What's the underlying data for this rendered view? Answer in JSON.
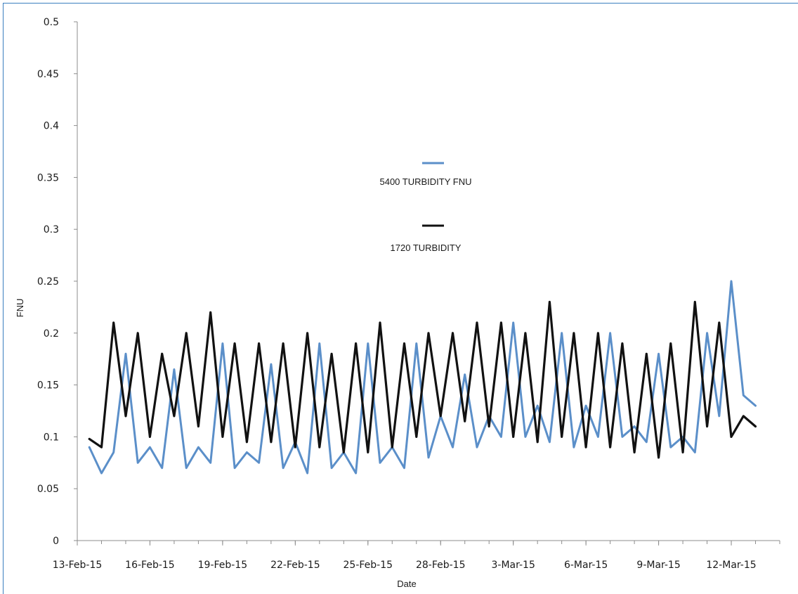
{
  "chart_data": {
    "type": "line",
    "title": "",
    "xlabel": "Date",
    "ylabel": "FNU",
    "ylim": [
      0,
      0.5
    ],
    "yticks": [
      0,
      0.05,
      0.1,
      0.15,
      0.2,
      0.25,
      0.3,
      0.35,
      0.4,
      0.45,
      0.5
    ],
    "ytick_labels": [
      "0",
      "0.05",
      "0.1",
      "0.15",
      "0.2",
      "0.25",
      "0.3",
      "0.35",
      "0.4",
      "0.45",
      "0.5"
    ],
    "xlim": [
      "2015-02-13",
      "2015-03-14"
    ],
    "xtick_labels": [
      "13-Feb-15",
      "16-Feb-15",
      "19-Feb-15",
      "22-Feb-15",
      "25-Feb-15",
      "28-Feb-15",
      "3-Mar-15",
      "6-Mar-15",
      "9-Mar-15",
      "12-Mar-15"
    ],
    "grid": false,
    "legend_position": "center",
    "colors": {
      "series1": "#5b8fc9",
      "series2": "#111111"
    },
    "series": [
      {
        "name": "5400 TURBIDITY FNU",
        "x": [
          "2015-02-13 12:00",
          "2015-02-14 00:00",
          "2015-02-14 12:00",
          "2015-02-15 00:00",
          "2015-02-15 12:00",
          "2015-02-16 00:00",
          "2015-02-16 12:00",
          "2015-02-17 00:00",
          "2015-02-17 12:00",
          "2015-02-18 00:00",
          "2015-02-18 12:00",
          "2015-02-19 00:00",
          "2015-02-19 12:00",
          "2015-02-20 00:00",
          "2015-02-20 12:00",
          "2015-02-21 00:00",
          "2015-02-21 12:00",
          "2015-02-22 00:00",
          "2015-02-22 12:00",
          "2015-02-23 00:00",
          "2015-02-23 12:00",
          "2015-02-24 00:00",
          "2015-02-24 12:00",
          "2015-02-25 00:00",
          "2015-02-25 12:00",
          "2015-02-26 00:00",
          "2015-02-26 12:00",
          "2015-02-27 00:00",
          "2015-02-27 12:00",
          "2015-02-28 00:00",
          "2015-02-28 12:00",
          "2015-03-01 00:00",
          "2015-03-01 12:00",
          "2015-03-02 00:00",
          "2015-03-02 12:00",
          "2015-03-03 00:00",
          "2015-03-03 12:00",
          "2015-03-04 00:00",
          "2015-03-04 12:00",
          "2015-03-05 00:00",
          "2015-03-05 12:00",
          "2015-03-06 00:00",
          "2015-03-06 12:00",
          "2015-03-07 00:00",
          "2015-03-07 12:00",
          "2015-03-08 00:00",
          "2015-03-08 12:00",
          "2015-03-09 00:00",
          "2015-03-09 12:00",
          "2015-03-10 00:00",
          "2015-03-10 12:00",
          "2015-03-11 00:00",
          "2015-03-11 12:00",
          "2015-03-12 00:00",
          "2015-03-12 12:00",
          "2015-03-13 00:00"
        ],
        "values": [
          0.09,
          0.065,
          0.085,
          0.18,
          0.075,
          0.09,
          0.07,
          0.165,
          0.07,
          0.09,
          0.075,
          0.19,
          0.07,
          0.085,
          0.075,
          0.17,
          0.07,
          0.095,
          0.065,
          0.19,
          0.07,
          0.085,
          0.065,
          0.19,
          0.075,
          0.09,
          0.07,
          0.19,
          0.08,
          0.12,
          0.09,
          0.16,
          0.09,
          0.12,
          0.1,
          0.21,
          0.1,
          0.13,
          0.095,
          0.2,
          0.09,
          0.13,
          0.1,
          0.2,
          0.1,
          0.11,
          0.095,
          0.18,
          0.09,
          0.1,
          0.085,
          0.2,
          0.12,
          0.25,
          0.14,
          0.13
        ]
      },
      {
        "name": "1720 TURBIDITY",
        "x": [
          "2015-02-13 12:00",
          "2015-02-14 00:00",
          "2015-02-14 12:00",
          "2015-02-15 00:00",
          "2015-02-15 12:00",
          "2015-02-16 00:00",
          "2015-02-16 12:00",
          "2015-02-17 00:00",
          "2015-02-17 12:00",
          "2015-02-18 00:00",
          "2015-02-18 12:00",
          "2015-02-19 00:00",
          "2015-02-19 12:00",
          "2015-02-20 00:00",
          "2015-02-20 12:00",
          "2015-02-21 00:00",
          "2015-02-21 12:00",
          "2015-02-22 00:00",
          "2015-02-22 12:00",
          "2015-02-23 00:00",
          "2015-02-23 12:00",
          "2015-02-24 00:00",
          "2015-02-24 12:00",
          "2015-02-25 00:00",
          "2015-02-25 12:00",
          "2015-02-26 00:00",
          "2015-02-26 12:00",
          "2015-02-27 00:00",
          "2015-02-27 12:00",
          "2015-02-28 00:00",
          "2015-02-28 12:00",
          "2015-03-01 00:00",
          "2015-03-01 12:00",
          "2015-03-02 00:00",
          "2015-03-02 12:00",
          "2015-03-03 00:00",
          "2015-03-03 12:00",
          "2015-03-04 00:00",
          "2015-03-04 12:00",
          "2015-03-05 00:00",
          "2015-03-05 12:00",
          "2015-03-06 00:00",
          "2015-03-06 12:00",
          "2015-03-07 00:00",
          "2015-03-07 12:00",
          "2015-03-08 00:00",
          "2015-03-08 12:00",
          "2015-03-09 00:00",
          "2015-03-09 12:00",
          "2015-03-10 00:00",
          "2015-03-10 12:00",
          "2015-03-11 00:00",
          "2015-03-11 12:00",
          "2015-03-12 00:00",
          "2015-03-12 12:00",
          "2015-03-13 00:00"
        ],
        "values": [
          0.098,
          0.09,
          0.21,
          0.12,
          0.2,
          0.1,
          0.18,
          0.12,
          0.2,
          0.11,
          0.22,
          0.1,
          0.19,
          0.095,
          0.19,
          0.095,
          0.19,
          0.09,
          0.2,
          0.09,
          0.18,
          0.085,
          0.19,
          0.085,
          0.21,
          0.09,
          0.19,
          0.1,
          0.2,
          0.12,
          0.2,
          0.115,
          0.21,
          0.11,
          0.21,
          0.1,
          0.2,
          0.095,
          0.23,
          0.1,
          0.2,
          0.09,
          0.2,
          0.09,
          0.19,
          0.085,
          0.18,
          0.08,
          0.19,
          0.085,
          0.23,
          0.11,
          0.21,
          0.1,
          0.12,
          0.11
        ]
      }
    ]
  }
}
